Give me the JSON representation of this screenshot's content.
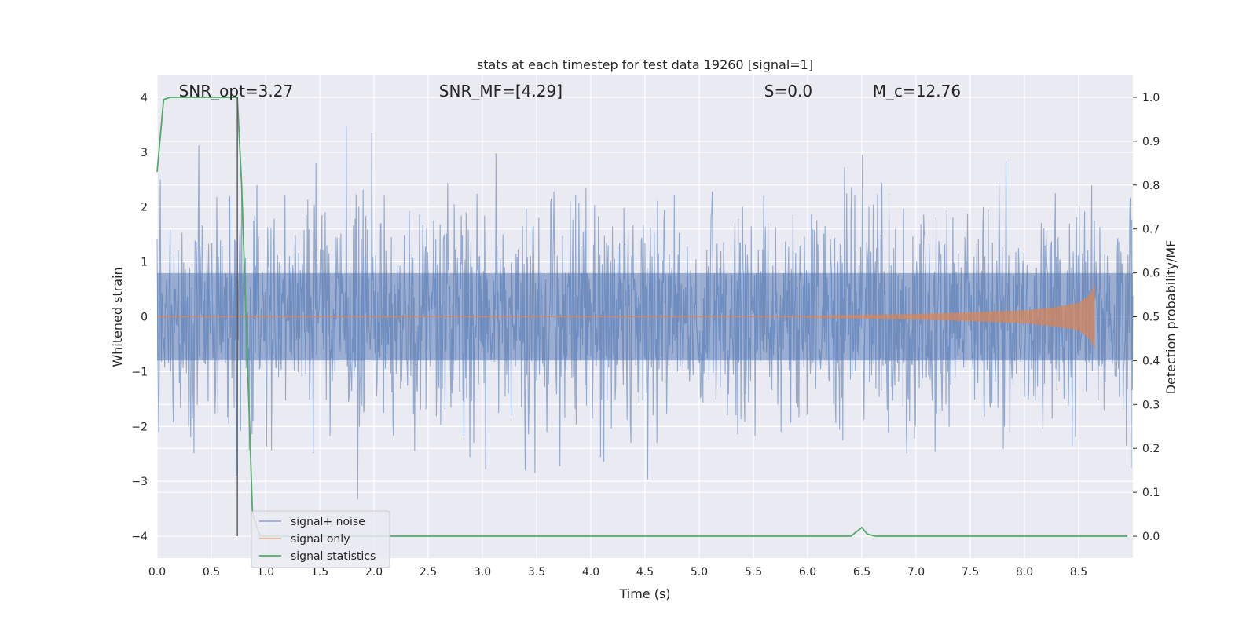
{
  "chart_data": {
    "type": "line",
    "title": "stats at each timestep for test data 19260 [signal=1]",
    "xlabel": "Time (s)",
    "ylabel": "Whitened strain",
    "y2label": "Detection probability/MF",
    "xlim": [
      0.0,
      9.0
    ],
    "ylim": [
      -4.4,
      4.4
    ],
    "y2lim": [
      -0.05,
      1.05
    ],
    "x_ticks": [
      "0.0",
      "0.5",
      "1.0",
      "1.5",
      "2.0",
      "2.5",
      "3.0",
      "3.5",
      "4.0",
      "4.5",
      "5.0",
      "5.5",
      "6.0",
      "6.5",
      "7.0",
      "7.5",
      "8.0",
      "8.5"
    ],
    "y_ticks": [
      "−4",
      "−3",
      "−2",
      "−1",
      "0",
      "1",
      "2",
      "3",
      "4"
    ],
    "y2_ticks": [
      "0.0",
      "0.1",
      "0.2",
      "0.3",
      "0.4",
      "0.5",
      "0.6",
      "0.7",
      "0.8",
      "0.9",
      "1.0"
    ],
    "grid": true,
    "legend_position": "lower-left",
    "annotations": [
      {
        "text": "SNR_opt=3.27",
        "x": 0.2
      },
      {
        "text": "SNR_MF=[4.29]",
        "x": 2.6
      },
      {
        "text": "S=0.0",
        "x": 5.6
      },
      {
        "text": "M_c=12.76",
        "x": 6.6
      }
    ],
    "annotation_y": 4.1,
    "marker_line": {
      "x": 0.74,
      "y": [
        -4.0,
        4.0
      ]
    },
    "series": [
      {
        "name": "signal+ noise",
        "color": "#4c72b0",
        "description_values": {
          "typical_amplitude": 1.2,
          "peak_max": 4.0,
          "peak_min": -3.95
        }
      },
      {
        "name": "signal only",
        "color": "#dd8452",
        "envelope": {
          "x": [
            6.0,
            7.0,
            7.5,
            8.0,
            8.3,
            8.5,
            8.6,
            8.65
          ],
          "amplitude": [
            0.02,
            0.05,
            0.08,
            0.12,
            0.18,
            0.25,
            0.4,
            0.6
          ]
        }
      },
      {
        "name": "signal statistics",
        "color": "#55a868",
        "axis": "right",
        "x": [
          0.0,
          0.06,
          0.12,
          0.5,
          0.74,
          0.78,
          0.88,
          0.95,
          6.4,
          6.5,
          6.55,
          6.62,
          8.95
        ],
        "values": [
          0.83,
          0.995,
          1.0,
          1.0,
          1.0,
          0.8,
          0.05,
          0.0,
          0.0,
          0.02,
          0.005,
          0.0,
          0.0
        ]
      }
    ]
  },
  "colors": {
    "plot_background": "#eaeaf2",
    "grid": "#ffffff",
    "noise": "#4c72b0",
    "signal": "#dd8452",
    "stat": "#55a868"
  }
}
